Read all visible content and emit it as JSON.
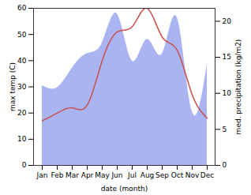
{
  "chart_data": {
    "type": "line",
    "categories": [
      "Jan",
      "Feb",
      "Mar",
      "Apr",
      "May",
      "Jun",
      "Jul",
      "Aug",
      "Sep",
      "Oct",
      "Nov",
      "Dec"
    ],
    "x_label": "date (month)",
    "y_label": "max temp (C)",
    "y2_label": "med. precipitation (kg/m2)",
    "ylim": [
      0,
      60
    ],
    "yticks": [
      0,
      10,
      20,
      30,
      40,
      50,
      60
    ],
    "y2lim": [
      0,
      21.8
    ],
    "y2ticks": [
      0,
      5,
      10,
      15,
      20
    ],
    "series": [
      {
        "type": "area",
        "axis": "y2",
        "color": "#aab4f0",
        "values": [
          11.1,
          10.8,
          13.5,
          15.5,
          17,
          21,
          14.5,
          17.5,
          15.5,
          20.5,
          7.5,
          14
        ]
      },
      {
        "type": "line",
        "color": "#c8504f",
        "values": [
          17,
          20,
          22,
          23,
          40,
          51,
          53,
          60,
          49,
          44,
          27,
          18
        ]
      }
    ]
  }
}
